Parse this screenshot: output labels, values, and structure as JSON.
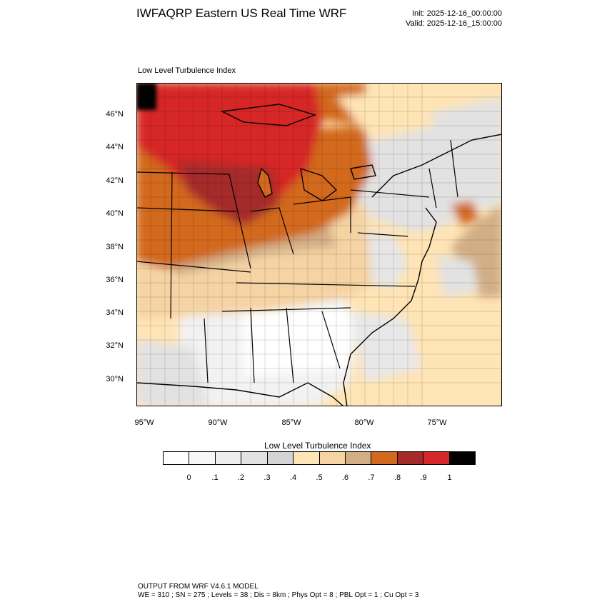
{
  "header": {
    "title": "IWFAQRP Eastern US Real Time WRF",
    "init": "Init: 2025-12-16_00:00:00",
    "valid": "Valid: 2025-12-16_15:00:00"
  },
  "map": {
    "plot_label": "Low Level Turbulence Index",
    "lat_labels": [
      "46°N",
      "44°N",
      "42°N",
      "40°N",
      "38°N",
      "36°N",
      "34°N",
      "32°N",
      "30°N"
    ],
    "lon_labels": [
      "95°W",
      "90°W",
      "85°W",
      "80°W",
      "75°W"
    ]
  },
  "colorbar": {
    "title": "Low Level Turbulence Index",
    "colors": [
      "#ffffff",
      "#f7f7f7",
      "#eeeeee",
      "#e2e2e2",
      "#d4d4d4",
      "#ffe4b5",
      "#f5d3a3",
      "#d2ae86",
      "#d2691e",
      "#a52a2a",
      "#d62828",
      "#000000"
    ],
    "labels": [
      "0",
      ".1",
      ".2",
      ".3",
      ".4",
      ".5",
      ".6",
      ".7",
      ".8",
      ".9",
      "1"
    ]
  },
  "footer": {
    "line1": "OUTPUT FROM WRF V4.6.1 MODEL",
    "line2": "WE = 310 ; SN = 275 ; Levels = 38 ; Dis = 8km ; Phys Opt = 8 ; PBL Opt = 1 ; Cu Opt = 3"
  }
}
